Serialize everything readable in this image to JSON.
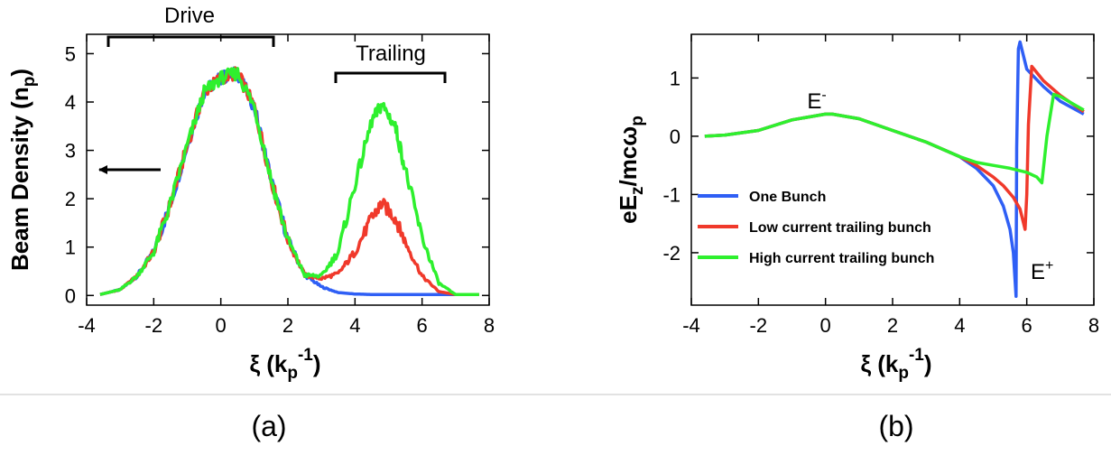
{
  "panels": {
    "a": {
      "caption": "(a)",
      "annotations": {
        "drive": "Drive",
        "trailing": "Trailing"
      },
      "xlabel": {
        "main": "ξ  (k",
        "sub": "p",
        "sup": "-1",
        "close": ")"
      },
      "ylabel": {
        "main": "Beam Density (n",
        "sub": "p",
        "close": ")"
      }
    },
    "b": {
      "caption": "(b)",
      "annotations": {
        "e_minus": {
          "main": "E",
          "sup": "-"
        },
        "e_plus": {
          "main": "E",
          "sup": "+"
        }
      },
      "xlabel": {
        "main": "ξ (k",
        "sub": "p",
        "sup": "-1",
        "close": ")"
      },
      "ylabel": {
        "p1": "eE",
        "s1": "z",
        "p2": "/mcω",
        "s2": "p"
      }
    }
  },
  "chart_data": [
    {
      "type": "line",
      "panel": "a",
      "xlim": [
        -4,
        8
      ],
      "ylim": [
        -0.2,
        5.4
      ],
      "xticks": [
        -4,
        -2,
        0,
        2,
        4,
        6,
        8
      ],
      "yticks": [
        0,
        1,
        2,
        3,
        4,
        5
      ],
      "colors": {
        "blue": "#2f5ff5",
        "red": "#f0392b",
        "green": "#2ef02e"
      },
      "series": [
        {
          "color": "blue",
          "x": [
            -3.6,
            -3,
            -2.5,
            -2,
            -1.5,
            -1,
            -0.5,
            0,
            0.5,
            1,
            1.5,
            2,
            2.5,
            3,
            3.5,
            4,
            4.5,
            5,
            5.5,
            6,
            6.5,
            7,
            7.7
          ],
          "y": [
            0.02,
            0.12,
            0.4,
            0.9,
            1.9,
            3.1,
            4.2,
            4.5,
            4.6,
            3.9,
            2.4,
            1.15,
            0.42,
            0.18,
            0.06,
            0.03,
            0.02,
            0.02,
            0.02,
            0.02,
            0.02,
            0.02,
            0.02
          ]
        },
        {
          "color": "red",
          "x": [
            -3.6,
            -3,
            -2.5,
            -2,
            -1.5,
            -1,
            -0.5,
            0,
            0.5,
            1,
            1.5,
            2,
            2.5,
            3,
            3.5,
            4,
            4.5,
            4.8,
            5.2,
            5.5,
            6,
            6.5,
            7,
            7.7
          ],
          "y": [
            0.02,
            0.12,
            0.4,
            0.9,
            1.9,
            3.1,
            4.2,
            4.5,
            4.6,
            3.9,
            2.4,
            1.15,
            0.42,
            0.35,
            0.45,
            0.9,
            1.6,
            1.9,
            1.6,
            1.1,
            0.4,
            0.08,
            0.02,
            0.02
          ]
        },
        {
          "color": "green",
          "x": [
            -3.6,
            -3,
            -2.5,
            -2,
            -1.5,
            -1,
            -0.5,
            0,
            0.5,
            1,
            1.5,
            2,
            2.5,
            3,
            3.5,
            4,
            4.5,
            4.8,
            5.2,
            5.5,
            6,
            6.5,
            7,
            7.7
          ],
          "y": [
            0.02,
            0.12,
            0.4,
            0.9,
            1.9,
            3.1,
            4.2,
            4.5,
            4.6,
            3.9,
            2.4,
            1.15,
            0.42,
            0.4,
            0.9,
            2.3,
            3.6,
            3.95,
            3.5,
            2.6,
            1.2,
            0.25,
            0.02,
            0.02
          ]
        }
      ]
    },
    {
      "type": "line",
      "panel": "b",
      "xlim": [
        -4,
        8
      ],
      "ylim": [
        -2.9,
        1.75
      ],
      "xticks": [
        -4,
        -2,
        0,
        2,
        4,
        6,
        8
      ],
      "yticks": [
        -2,
        -1,
        0,
        1
      ],
      "legend_position": "lower-left",
      "colors": {
        "blue": "#2f5ff5",
        "red": "#f0392b",
        "green": "#2ef02e"
      },
      "series": [
        {
          "name": "One Bunch",
          "color": "blue",
          "x": [
            -3.6,
            -3,
            -2,
            -1,
            0,
            0.2,
            1,
            2,
            3,
            4,
            4.5,
            5,
            5.3,
            5.5,
            5.6,
            5.68,
            5.7,
            5.75,
            5.8,
            6,
            6.5,
            7,
            7.7
          ],
          "y": [
            0.0,
            0.02,
            0.1,
            0.28,
            0.38,
            0.38,
            0.3,
            0.1,
            -0.1,
            -0.35,
            -0.55,
            -0.85,
            -1.2,
            -1.6,
            -2.0,
            -2.75,
            -0.2,
            1.5,
            1.62,
            1.15,
            0.85,
            0.6,
            0.38
          ]
        },
        {
          "name": "Low current trailing bunch",
          "color": "red",
          "x": [
            -3.6,
            -3,
            -2,
            -1,
            0,
            0.2,
            1,
            2,
            3,
            4,
            4.5,
            5,
            5.3,
            5.6,
            5.8,
            5.95,
            6.0,
            6.05,
            6.15,
            6.5,
            7,
            7.7
          ],
          "y": [
            0.0,
            0.02,
            0.1,
            0.28,
            0.38,
            0.38,
            0.3,
            0.1,
            -0.1,
            -0.35,
            -0.5,
            -0.7,
            -0.85,
            -1.05,
            -1.25,
            -1.6,
            -1.0,
            0.2,
            1.2,
            0.95,
            0.7,
            0.42
          ]
        },
        {
          "name": "High current trailing bunch",
          "color": "green",
          "x": [
            -3.6,
            -3,
            -2,
            -1,
            0,
            0.2,
            1,
            2,
            3,
            4,
            4.5,
            5,
            5.5,
            6,
            6.3,
            6.45,
            6.6,
            6.8,
            7,
            7.7
          ],
          "y": [
            0.0,
            0.02,
            0.1,
            0.28,
            0.38,
            0.38,
            0.3,
            0.1,
            -0.1,
            -0.35,
            -0.45,
            -0.5,
            -0.55,
            -0.62,
            -0.7,
            -0.8,
            0.0,
            0.72,
            0.68,
            0.45
          ]
        }
      ]
    }
  ]
}
